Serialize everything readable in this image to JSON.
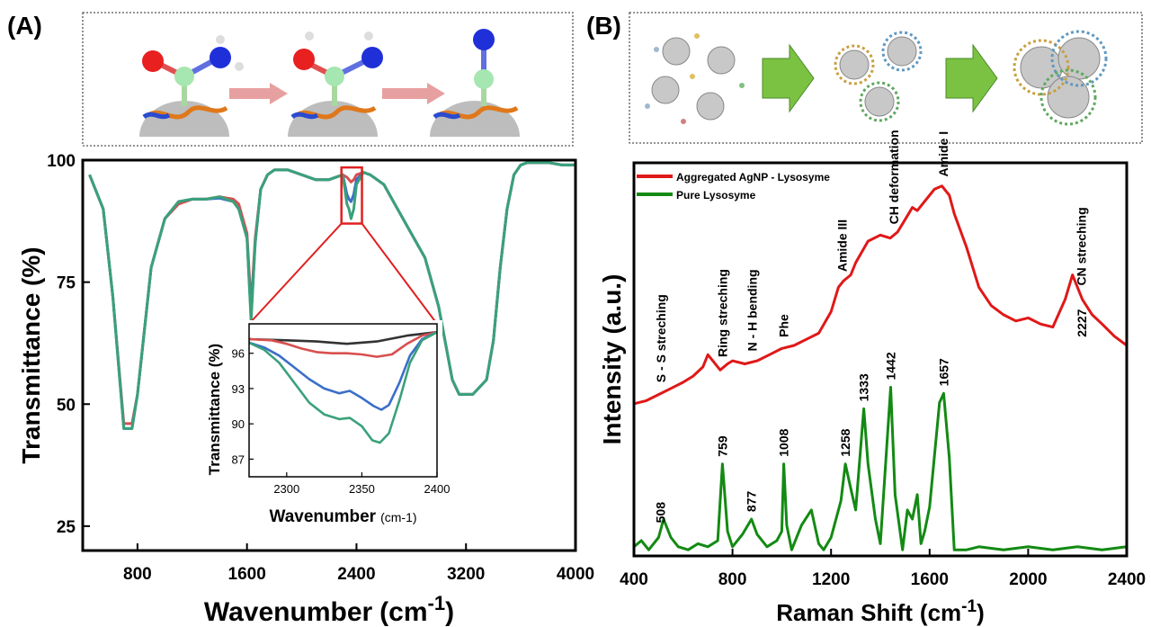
{
  "panels": {
    "A": {
      "label": "(A)"
    },
    "B": {
      "label": "(B)"
    }
  },
  "colors": {
    "red": "#d94f4f",
    "blue": "#3a6fc9",
    "green": "#3aa17a",
    "black": "#333333",
    "raman_red": "#e01818",
    "raman_green": "#138a13",
    "arrow_pink": "#e7a0a0",
    "arrow_green": "#7cc242",
    "inset_box": "#e02020"
  },
  "chart_data": [
    {
      "id": "ftir-main",
      "type": "line",
      "title": "",
      "xlabel": "Wavenumber (cm-1)",
      "xlabel_text": "Wavenumber",
      "xlabel_unit": "(cm",
      "xlabel_sup": "-1",
      "xlabel_close": ")",
      "ylabel": "Transmittance (%)",
      "xlim": [
        400,
        4000
      ],
      "ylim": [
        20,
        100
      ],
      "xticks": [
        800,
        1600,
        2400,
        3200,
        4000
      ],
      "yticks": [
        25,
        50,
        75,
        100
      ],
      "grid": false,
      "series": [
        {
          "color": "red",
          "x": [
            450,
            550,
            620,
            700,
            760,
            800,
            900,
            1000,
            1100,
            1200,
            1300,
            1400,
            1500,
            1540,
            1600,
            1630,
            1660,
            1700,
            1750,
            1800,
            1900,
            2000,
            2100,
            2200,
            2300,
            2330,
            2345,
            2360,
            2380,
            2400,
            2450,
            2500,
            2600,
            2700,
            2800,
            2900,
            3000,
            3100,
            3150,
            3250,
            3350,
            3400,
            3450,
            3500,
            3550,
            3600,
            3650,
            3700,
            3800,
            3900,
            4000
          ],
          "y": [
            97,
            90,
            72,
            46,
            46,
            52,
            78,
            88,
            91,
            92,
            92,
            92.5,
            92,
            91,
            85,
            70,
            84,
            94,
            97,
            98,
            98,
            97,
            96,
            96,
            97,
            96.5,
            96,
            95.5,
            96,
            97,
            97.5,
            97,
            95,
            90,
            85,
            80,
            70,
            55,
            52,
            52,
            55,
            63,
            78,
            90,
            97,
            99,
            99.5,
            99.5,
            99.5,
            99,
            99
          ]
        },
        {
          "color": "blue",
          "x": [
            450,
            550,
            620,
            700,
            760,
            800,
            900,
            1000,
            1100,
            1200,
            1300,
            1400,
            1500,
            1540,
            1600,
            1630,
            1660,
            1700,
            1750,
            1800,
            1900,
            2000,
            2100,
            2200,
            2300,
            2330,
            2345,
            2360,
            2380,
            2400,
            2450,
            2500,
            2600,
            2700,
            2800,
            2900,
            3000,
            3100,
            3150,
            3250,
            3350,
            3400,
            3450,
            3500,
            3550,
            3600,
            3650,
            3700,
            3800,
            3900,
            4000
          ],
          "y": [
            97,
            90,
            72,
            45,
            45,
            52,
            78,
            88,
            91.5,
            92,
            92,
            92.2,
            91.5,
            90,
            84,
            68,
            83,
            94,
            97,
            98,
            98,
            97,
            96,
            96,
            97,
            93,
            92,
            91.5,
            93,
            96,
            97.5,
            97,
            95,
            90,
            85,
            80,
            70,
            55,
            52,
            52,
            55,
            63,
            78,
            90,
            97,
            99,
            99.5,
            99.5,
            99.5,
            99,
            99
          ]
        },
        {
          "color": "green",
          "x": [
            450,
            550,
            620,
            700,
            760,
            800,
            900,
            1000,
            1100,
            1200,
            1300,
            1400,
            1500,
            1540,
            1600,
            1630,
            1660,
            1700,
            1750,
            1800,
            1900,
            2000,
            2100,
            2200,
            2300,
            2330,
            2345,
            2360,
            2380,
            2400,
            2450,
            2500,
            2600,
            2700,
            2800,
            2900,
            3000,
            3100,
            3150,
            3250,
            3350,
            3400,
            3450,
            3500,
            3550,
            3600,
            3650,
            3700,
            3800,
            3900,
            4000
          ],
          "y": [
            97,
            90,
            72,
            45,
            45,
            52,
            78,
            88,
            91.5,
            92,
            92,
            92.5,
            91.5,
            90,
            84,
            67,
            83,
            94,
            97,
            98,
            98,
            97,
            96,
            96,
            97,
            91,
            90,
            88,
            90,
            95,
            97.5,
            97,
            95,
            90,
            85,
            80,
            70,
            55,
            52,
            52,
            55,
            63,
            78,
            90,
            97,
            99,
            99.5,
            99.5,
            99.5,
            99,
            99
          ]
        }
      ]
    },
    {
      "id": "ftir-inset",
      "type": "line",
      "title": "",
      "xlabel": "Wavenumber (cm-1)",
      "xlabel_text": "Wavenumber",
      "xlabel_unit": "(cm-1)",
      "ylabel": "Transmittance (%)",
      "xlim": [
        2275,
        2400
      ],
      "ylim": [
        85.5,
        98.5
      ],
      "xticks": [
        2300,
        2350,
        2400
      ],
      "yticks": [
        87,
        90,
        93,
        96
      ],
      "grid": false,
      "series": [
        {
          "color": "black",
          "x": [
            2275,
            2300,
            2320,
            2340,
            2360,
            2380,
            2400
          ],
          "y": [
            97.2,
            97.1,
            97.0,
            96.8,
            97.0,
            97.5,
            97.8
          ]
        },
        {
          "color": "red",
          "x": [
            2275,
            2290,
            2300,
            2310,
            2320,
            2330,
            2340,
            2350,
            2360,
            2370,
            2380,
            2390,
            2400
          ],
          "y": [
            97.2,
            97.1,
            96.8,
            96.4,
            96.1,
            96.0,
            96.0,
            95.9,
            95.7,
            95.9,
            96.8,
            97.5,
            97.8
          ]
        },
        {
          "color": "blue",
          "x": [
            2275,
            2285,
            2295,
            2305,
            2315,
            2325,
            2335,
            2342,
            2350,
            2358,
            2363,
            2368,
            2375,
            2382,
            2390,
            2400
          ],
          "y": [
            96.9,
            96.5,
            95.8,
            94.8,
            93.8,
            93.0,
            92.6,
            92.8,
            92.2,
            91.5,
            91.2,
            91.6,
            93.5,
            95.8,
            97.2,
            97.8
          ]
        },
        {
          "color": "green",
          "x": [
            2275,
            2285,
            2295,
            2305,
            2315,
            2325,
            2335,
            2342,
            2350,
            2357,
            2362,
            2368,
            2375,
            2382,
            2390,
            2400
          ],
          "y": [
            96.9,
            96.3,
            95.2,
            93.5,
            91.8,
            90.8,
            90.4,
            90.5,
            89.8,
            88.6,
            88.4,
            89.2,
            92.0,
            95.2,
            97.1,
            97.8
          ]
        }
      ]
    },
    {
      "id": "raman",
      "type": "line",
      "title": "",
      "xlabel": "Raman Shift (cm-1)",
      "xlabel_text": "Raman Shift",
      "xlabel_unit": "(cm",
      "xlabel_sup": "-1",
      "xlabel_close": ")",
      "ylabel": "Intensity (a.u.)",
      "xlim": [
        400,
        2400
      ],
      "ylim": [
        0,
        100
      ],
      "xticks": [
        400,
        800,
        1200,
        1600,
        2000,
        2400
      ],
      "yticks": [],
      "grid": false,
      "legend": {
        "position": "top-left",
        "entries": [
          {
            "label": "Aggregated AgNP - Lysosyme",
            "color": "raman_red"
          },
          {
            "label": "Pure Lysosyme",
            "color": "raman_green"
          }
        ]
      },
      "series": [
        {
          "name": "Aggregated AgNP - Lysosyme",
          "color": "raman_red",
          "x": [
            400,
            450,
            500,
            550,
            600,
            640,
            680,
            700,
            720,
            750,
            780,
            800,
            850,
            900,
            950,
            1000,
            1050,
            1100,
            1150,
            1200,
            1230,
            1250,
            1280,
            1300,
            1350,
            1400,
            1440,
            1470,
            1500,
            1530,
            1550,
            1570,
            1600,
            1620,
            1650,
            1680,
            1700,
            1750,
            1800,
            1850,
            1900,
            1950,
            2000,
            2050,
            2100,
            2150,
            2180,
            2220,
            2260,
            2300,
            2350,
            2400
          ],
          "y": [
            24,
            25,
            27,
            29,
            31,
            33,
            36,
            40,
            38,
            35,
            37,
            38,
            37,
            38,
            40,
            42,
            43,
            45,
            47,
            54,
            62,
            64,
            66,
            70,
            77,
            79,
            78,
            80,
            84,
            88,
            87,
            89,
            92,
            94,
            95,
            92,
            86,
            75,
            62,
            56,
            53,
            51,
            52,
            50,
            49,
            58,
            66,
            58,
            53,
            50,
            46,
            43
          ]
        },
        {
          "name": "Pure Lysosyme",
          "color": "raman_green",
          "x": [
            400,
            430,
            460,
            500,
            520,
            550,
            580,
            620,
            660,
            700,
            740,
            759,
            780,
            800,
            840,
            877,
            900,
            940,
            980,
            1000,
            1008,
            1020,
            1040,
            1080,
            1120,
            1150,
            1170,
            1200,
            1240,
            1258,
            1280,
            1300,
            1333,
            1350,
            1380,
            1400,
            1442,
            1460,
            1490,
            1510,
            1530,
            1550,
            1565,
            1580,
            1600,
            1620,
            1640,
            1657,
            1680,
            1700,
            1750,
            1800,
            1900,
            2000,
            2100,
            2200,
            2300,
            2400
          ],
          "y": [
            3,
            5,
            2,
            6,
            12,
            6,
            3,
            2,
            4,
            3,
            5,
            30,
            8,
            3,
            7,
            12,
            7,
            3,
            5,
            8,
            30,
            10,
            2,
            10,
            15,
            4,
            2,
            6,
            18,
            30,
            22,
            15,
            48,
            30,
            12,
            4,
            55,
            20,
            2,
            15,
            12,
            20,
            4,
            8,
            16,
            33,
            50,
            53,
            32,
            2,
            2,
            3,
            2,
            3,
            2,
            3,
            2,
            3
          ]
        }
      ],
      "annotations": [
        {
          "x": 510,
          "text": "S - S streching",
          "series": "red"
        },
        {
          "x": 760,
          "text": "Ring streching",
          "series": "red"
        },
        {
          "x": 880,
          "text": "N - H bending",
          "series": "red"
        },
        {
          "x": 1008,
          "text": "Phe",
          "series": "red"
        },
        {
          "x": 1245,
          "text": "Amide III",
          "series": "red"
        },
        {
          "x": 1455,
          "text": "CH deformation",
          "series": "red"
        },
        {
          "x": 1655,
          "text": "Amide I",
          "series": "red"
        },
        {
          "x": 2215,
          "text": "CN streching",
          "series": "red"
        },
        {
          "x": 2218,
          "text": "2227",
          "series": "red",
          "below": true
        },
        {
          "x": 508,
          "text": "508",
          "series": "green"
        },
        {
          "x": 759,
          "text": "759",
          "series": "green"
        },
        {
          "x": 877,
          "text": "877",
          "series": "green"
        },
        {
          "x": 1008,
          "text": "1008",
          "series": "green"
        },
        {
          "x": 1258,
          "text": "1258",
          "series": "green"
        },
        {
          "x": 1333,
          "text": "1333",
          "series": "green"
        },
        {
          "x": 1442,
          "text": "1442",
          "series": "green"
        },
        {
          "x": 1657,
          "text": "1657",
          "series": "green"
        }
      ]
    }
  ]
}
